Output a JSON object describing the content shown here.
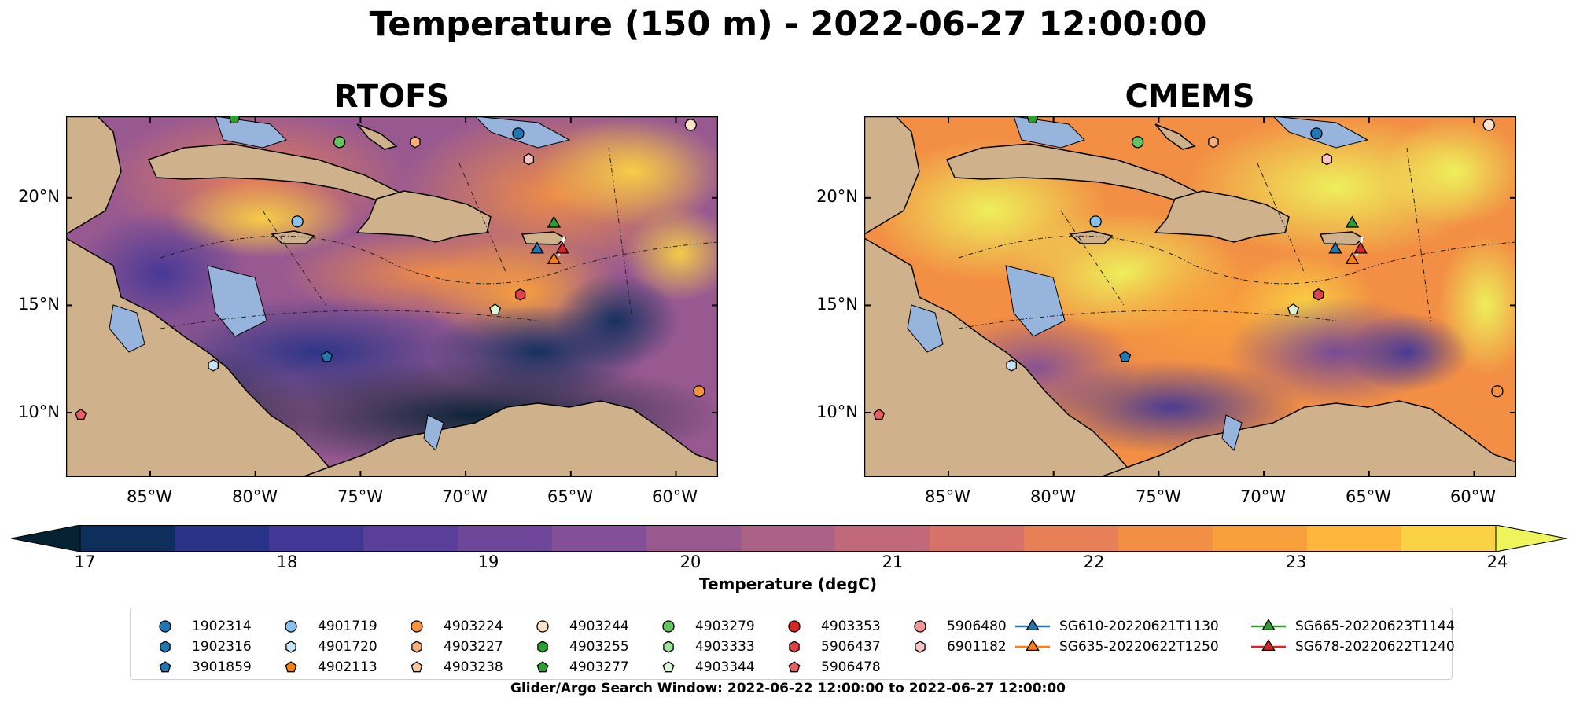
{
  "title": "Temperature (150 m) - 2022-06-27 12:00:00",
  "panels": [
    {
      "title": "RTOFS"
    },
    {
      "title": "CMEMS"
    }
  ],
  "map": {
    "lon_range": [
      -89,
      -58
    ],
    "lat_range": [
      7,
      23.8
    ],
    "lat_ticks": [
      "20°N",
      "15°N",
      "10°N"
    ],
    "lon_ticks": [
      "85°W",
      "80°W",
      "75°W",
      "70°W",
      "65°W",
      "60°W"
    ],
    "land_color": "#cfb28b",
    "shelf_color": "#96b4dc"
  },
  "colorbar": {
    "label": "Temperature (degC)",
    "ticks": [
      "17",
      "18",
      "19",
      "20",
      "21",
      "22",
      "23",
      "24"
    ],
    "colors": [
      "#062232",
      "#0e2f5c",
      "#283387",
      "#433796",
      "#5a3f9a",
      "#6f479a",
      "#834f96",
      "#985991",
      "#ac6186",
      "#c1697a",
      "#d7726a",
      "#e77f57",
      "#f28f44",
      "#f8a13c",
      "#fbb63b",
      "#fad244",
      "#eef45c"
    ]
  },
  "legend": {
    "items": [
      {
        "label": "1902314",
        "shape": "circle",
        "color": "#1f77b4"
      },
      {
        "label": "1902316",
        "shape": "hexagon",
        "color": "#1f77b4"
      },
      {
        "label": "3901859",
        "shape": "pentagon",
        "color": "#1f77b4"
      },
      {
        "label": "4901719",
        "shape": "circle",
        "color": "#87c1ec"
      },
      {
        "label": "4901720",
        "shape": "hexagon",
        "color": "#c6e2f6"
      },
      {
        "label": "4902113",
        "shape": "pentagon",
        "color": "#ff7f0e"
      },
      {
        "label": "4903224",
        "shape": "circle",
        "color": "#f5923e"
      },
      {
        "label": "4903227",
        "shape": "hexagon",
        "color": "#f8b07a"
      },
      {
        "label": "4903238",
        "shape": "pentagon",
        "color": "#fbc99a"
      },
      {
        "label": "4903244",
        "shape": "circle",
        "color": "#fde1c8"
      },
      {
        "label": "4903255",
        "shape": "hexagon",
        "color": "#2ca02c"
      },
      {
        "label": "4903277",
        "shape": "pentagon",
        "color": "#2ca02c"
      },
      {
        "label": "4903279",
        "shape": "circle",
        "color": "#63c35e"
      },
      {
        "label": "4903333",
        "shape": "hexagon",
        "color": "#9fe09a"
      },
      {
        "label": "4903344",
        "shape": "pentagon",
        "color": "#d8f7d2"
      },
      {
        "label": "4903353",
        "shape": "circle",
        "color": "#d62728"
      },
      {
        "label": "5906437",
        "shape": "hexagon",
        "color": "#e0424a"
      },
      {
        "label": "5906478",
        "shape": "pentagon",
        "color": "#ea6062"
      },
      {
        "label": "5906480",
        "shape": "circle",
        "color": "#f29595"
      },
      {
        "label": "6901182",
        "shape": "hexagon",
        "color": "#f8c4c2"
      },
      {
        "label": "SG610-20220621T1130",
        "shape": "triangle",
        "color": "#1f77b4"
      },
      {
        "label": "SG635-20220622T1250",
        "shape": "triangle",
        "color": "#ff7f0e"
      },
      {
        "label": "SG665-20220623T1144",
        "shape": "triangle",
        "color": "#2ca02c"
      },
      {
        "label": "SG678-20220622T1240",
        "shape": "triangle",
        "color": "#d62728"
      }
    ]
  },
  "markers": [
    {
      "id": "1902314",
      "lon": -67.5,
      "lat": 23.0
    },
    {
      "id": "4903227",
      "lon": -72.4,
      "lat": 22.6
    },
    {
      "id": "4903279",
      "lon": -76.0,
      "lat": 22.6
    },
    {
      "id": "4903277",
      "lon": -81.0,
      "lat": 23.7
    },
    {
      "id": "4903244",
      "lon": -59.3,
      "lat": 23.4
    },
    {
      "id": "6901182",
      "lon": -67.0,
      "lat": 21.8
    },
    {
      "id": "4901719",
      "lon": -78.0,
      "lat": 18.9
    },
    {
      "id": "5906437",
      "lon": -67.4,
      "lat": 15.5
    },
    {
      "id": "4903344",
      "lon": -68.6,
      "lat": 14.8
    },
    {
      "id": "4901720",
      "lon": -82.0,
      "lat": 12.2
    },
    {
      "id": "3901859",
      "lon": -76.6,
      "lat": 12.6
    },
    {
      "id": "5906478",
      "lon": -88.3,
      "lat": 9.9
    },
    {
      "id": "4903224",
      "lon": -58.9,
      "lat": 11.0
    },
    {
      "id": "SG665-20220623T1144",
      "lon": -65.8,
      "lat": 18.8
    },
    {
      "id": "SG610-20220621T1130",
      "lon": -66.6,
      "lat": 17.6
    },
    {
      "id": "SG635-20220622T1250",
      "lon": -65.8,
      "lat": 17.1
    },
    {
      "id": "SG678-20220622T1240",
      "lon": -65.4,
      "lat": 17.6
    }
  ],
  "footer": "Glider/Argo Search Window: 2022-06-22 12:00:00 to 2022-06-27 12:00:00"
}
